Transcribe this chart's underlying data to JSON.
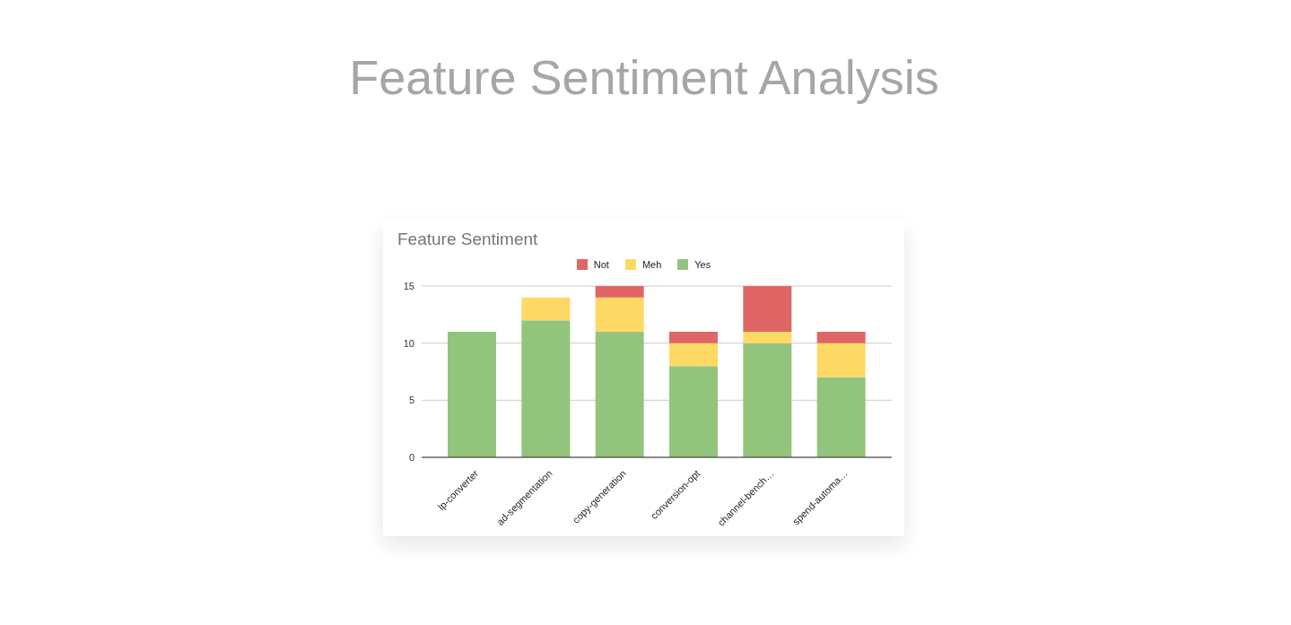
{
  "chart_data": {
    "type": "bar",
    "title": "Feature Sentiment Analysis",
    "subtitle": "Feature Sentiment",
    "categories": [
      "lp-converter",
      "ad-segmentation",
      "copy-generation",
      "conversion-opt",
      "channel-bench…",
      "spend-automa…"
    ],
    "stacked": true,
    "series": [
      {
        "name": "Yes",
        "color": "#93c47d",
        "values": [
          11,
          12,
          11,
          8,
          10,
          7
        ]
      },
      {
        "name": "Meh",
        "color": "#ffd966",
        "values": [
          0,
          2,
          3,
          2,
          1,
          3
        ]
      },
      {
        "name": "Not",
        "color": "#e06666",
        "values": [
          0,
          0,
          1,
          1,
          4,
          1
        ]
      }
    ],
    "ylim": [
      0,
      15
    ],
    "yticks": [
      0,
      5,
      10,
      15
    ],
    "grid": "y",
    "legend": "top"
  }
}
